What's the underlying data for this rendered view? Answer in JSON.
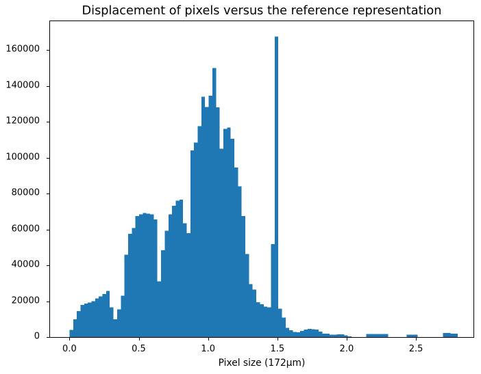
{
  "chart_data": {
    "type": "bar",
    "title": "Displacement of pixels versus the reference representation",
    "xlabel": "Pixel size (172µm)",
    "ylabel": "",
    "bar_color": "#1f77b4",
    "bin_start": 0.0,
    "bin_width": 0.026433,
    "values": [
      4000,
      10000,
      14500,
      18000,
      18600,
      19300,
      20000,
      21500,
      22700,
      24100,
      25700,
      16600,
      10000,
      15500,
      23000,
      45900,
      57500,
      60800,
      67400,
      68500,
      69100,
      68800,
      68500,
      65500,
      31000,
      48400,
      59200,
      68500,
      73200,
      76100,
      76700,
      63500,
      58000,
      104000,
      108500,
      117600,
      134000,
      128200,
      134500,
      150000,
      128000,
      105000,
      116000,
      116800,
      110500,
      94500,
      84000,
      67500,
      46300,
      29500,
      26500,
      19500,
      18300,
      17000,
      16500,
      51900,
      167500,
      15800,
      10900,
      5100,
      3900,
      2900,
      2700,
      3500,
      4200,
      4600,
      4400,
      4200,
      3100,
      1900,
      1900,
      1400,
      1400,
      1600,
      1500,
      900,
      400,
      0,
      0,
      0,
      0,
      1800,
      1800,
      1800,
      1800,
      1800,
      1800,
      0,
      0,
      0,
      0,
      0,
      1300,
      1400,
      1300,
      0,
      0,
      0,
      0,
      0,
      0,
      0,
      2200,
      2200,
      1900,
      1900
    ],
    "x_ticks": [
      "0.0",
      "0.5",
      "1.0",
      "1.5",
      "2.0",
      "2.5"
    ],
    "x_tick_values": [
      0.0,
      0.5,
      1.0,
      1.5,
      2.0,
      2.5
    ],
    "y_ticks": [
      "0",
      "20000",
      "40000",
      "60000",
      "80000",
      "100000",
      "120000",
      "140000",
      "160000"
    ],
    "y_tick_values": [
      0,
      20000,
      40000,
      60000,
      80000,
      100000,
      120000,
      140000,
      160000
    ],
    "xlim": [
      -0.1405,
      2.915
    ],
    "ylim": [
      0,
      176100
    ],
    "grid": false,
    "legend": null
  }
}
